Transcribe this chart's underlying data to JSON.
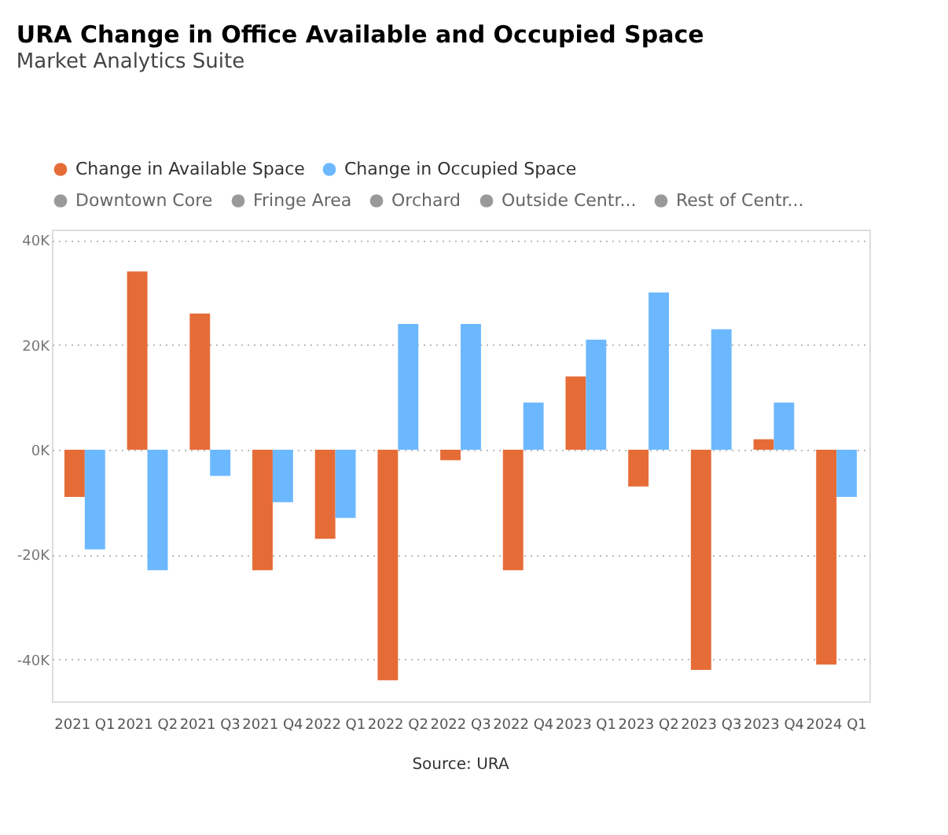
{
  "chart_data": {
    "type": "bar",
    "title": "URA Change in Office Available and Occupied Space",
    "subtitle": "Market Analytics Suite",
    "categories": [
      "2021 Q1",
      "2021 Q2",
      "2021 Q3",
      "2021 Q4",
      "2022 Q1",
      "2022 Q2",
      "2022 Q3",
      "2022 Q4",
      "2023 Q1",
      "2023 Q2",
      "2023 Q3",
      "2023 Q4",
      "2024 Q1"
    ],
    "series": [
      {
        "name": "Change in Available Space",
        "color": "#e66c37",
        "values": [
          -9000,
          34000,
          26000,
          -23000,
          -17000,
          -44000,
          -2000,
          -23000,
          14000,
          -7000,
          -42000,
          2000,
          -41000
        ]
      },
      {
        "name": "Change in Occupied Space",
        "color": "#6cb8ff",
        "values": [
          -19000,
          -23000,
          -5000,
          -10000,
          -13000,
          24000,
          24000,
          9000,
          21000,
          30000,
          23000,
          9000,
          -9000
        ]
      },
      {
        "name": "Downtown Core",
        "color": "#999999",
        "values": [
          null,
          null,
          null,
          null,
          null,
          null,
          null,
          null,
          null,
          null,
          null,
          null,
          null
        ]
      },
      {
        "name": "Fringe Area",
        "color": "#999999",
        "values": [
          null,
          null,
          null,
          null,
          null,
          null,
          null,
          null,
          null,
          null,
          null,
          null,
          null
        ]
      },
      {
        "name": "Orchard",
        "color": "#999999",
        "values": [
          null,
          null,
          null,
          null,
          null,
          null,
          null,
          null,
          null,
          null,
          null,
          null,
          null
        ]
      },
      {
        "name": "Outside Centr...",
        "color": "#999999",
        "values": [
          null,
          null,
          null,
          null,
          null,
          null,
          null,
          null,
          null,
          null,
          null,
          null,
          null
        ]
      },
      {
        "name": "Rest of Centr...",
        "color": "#999999",
        "values": [
          null,
          null,
          null,
          null,
          null,
          null,
          null,
          null,
          null,
          null,
          null,
          null,
          null
        ]
      }
    ],
    "ylim": [
      -48000,
      42000
    ],
    "yticks": [
      {
        "value": -40000,
        "label": "-40K"
      },
      {
        "value": -20000,
        "label": "-20K"
      },
      {
        "value": 0,
        "label": "0K"
      },
      {
        "value": 20000,
        "label": "20K"
      },
      {
        "value": 40000,
        "label": "40K"
      }
    ],
    "grid": "y",
    "legend": "top left",
    "annotations": [
      "Source: URA"
    ]
  }
}
